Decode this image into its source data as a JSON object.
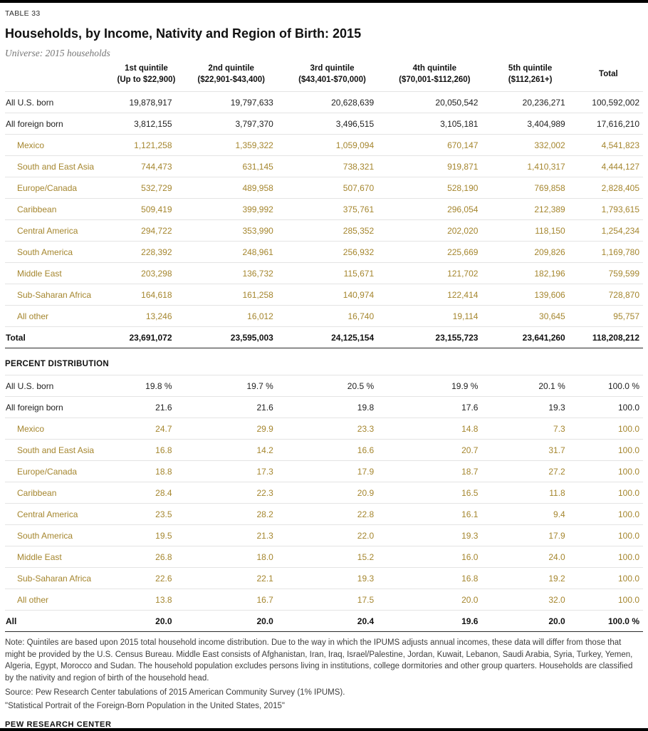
{
  "colors": {
    "accent-gold": "#a5862e",
    "text-dark": "#1a1a1a",
    "text-gray": "#757575",
    "line-light": "#e4e4e4",
    "line-dark": "#2b2b2b",
    "bar-black": "#000000"
  },
  "header": {
    "table_label": "TABLE 33",
    "title": "Households, by Income, Nativity and Region of Birth: 2015",
    "universe": "Universe: 2015 households"
  },
  "table": {
    "columns": [
      "",
      "1st quintile\n(Up to $22,900)",
      "2nd quintile\n($22,901-$43,400)",
      "3rd quintile\n($43,401-$70,000)",
      "4th quintile\n($70,001-$112,260)",
      "5th quintile\n($112,261+)",
      "Total"
    ],
    "count_rows": [
      {
        "label": "All U.S. born",
        "style": "plain",
        "values": [
          "19,878,917",
          "19,797,633",
          "20,628,639",
          "20,050,542",
          "20,236,271",
          "100,592,002"
        ]
      },
      {
        "label": "All foreign born",
        "style": "plain",
        "values": [
          "3,812,155",
          "3,797,370",
          "3,496,515",
          "3,105,181",
          "3,404,989",
          "17,616,210"
        ]
      },
      {
        "label": "Mexico",
        "style": "region",
        "values": [
          "1,121,258",
          "1,359,322",
          "1,059,094",
          "670,147",
          "332,002",
          "4,541,823"
        ]
      },
      {
        "label": "South and East Asia",
        "style": "region",
        "values": [
          "744,473",
          "631,145",
          "738,321",
          "919,871",
          "1,410,317",
          "4,444,127"
        ]
      },
      {
        "label": "Europe/Canada",
        "style": "region",
        "values": [
          "532,729",
          "489,958",
          "507,670",
          "528,190",
          "769,858",
          "2,828,405"
        ]
      },
      {
        "label": "Caribbean",
        "style": "region",
        "values": [
          "509,419",
          "399,992",
          "375,761",
          "296,054",
          "212,389",
          "1,793,615"
        ]
      },
      {
        "label": "Central America",
        "style": "region",
        "values": [
          "294,722",
          "353,990",
          "285,352",
          "202,020",
          "118,150",
          "1,254,234"
        ]
      },
      {
        "label": "South America",
        "style": "region",
        "values": [
          "228,392",
          "248,961",
          "256,932",
          "225,669",
          "209,826",
          "1,169,780"
        ]
      },
      {
        "label": "Middle East",
        "style": "region",
        "values": [
          "203,298",
          "136,732",
          "115,671",
          "121,702",
          "182,196",
          "759,599"
        ]
      },
      {
        "label": "Sub-Saharan Africa",
        "style": "region",
        "values": [
          "164,618",
          "161,258",
          "140,974",
          "122,414",
          "139,606",
          "728,870"
        ]
      },
      {
        "label": "All other",
        "style": "region",
        "values": [
          "13,246",
          "16,012",
          "16,740",
          "19,114",
          "30,645",
          "95,757"
        ]
      },
      {
        "label": "Total",
        "style": "total",
        "values": [
          "23,691,072",
          "23,595,003",
          "24,125,154",
          "23,155,723",
          "23,641,260",
          "118,208,212"
        ]
      }
    ],
    "percent_heading": "PERCENT DISTRIBUTION",
    "percent_rows": [
      {
        "label": "All U.S. born",
        "style": "plain",
        "values": [
          "19.8 %",
          "19.7 %",
          "20.5 %",
          "19.9 %",
          "20.1 %",
          "100.0 %"
        ]
      },
      {
        "label": "All foreign born",
        "style": "plain",
        "values": [
          "21.6",
          "21.6",
          "19.8",
          "17.6",
          "19.3",
          "100.0"
        ]
      },
      {
        "label": "Mexico",
        "style": "region",
        "values": [
          "24.7",
          "29.9",
          "23.3",
          "14.8",
          "7.3",
          "100.0"
        ]
      },
      {
        "label": "South and East Asia",
        "style": "region",
        "values": [
          "16.8",
          "14.2",
          "16.6",
          "20.7",
          "31.7",
          "100.0"
        ]
      },
      {
        "label": "Europe/Canada",
        "style": "region",
        "values": [
          "18.8",
          "17.3",
          "17.9",
          "18.7",
          "27.2",
          "100.0"
        ]
      },
      {
        "label": "Caribbean",
        "style": "region",
        "values": [
          "28.4",
          "22.3",
          "20.9",
          "16.5",
          "11.8",
          "100.0"
        ]
      },
      {
        "label": "Central America",
        "style": "region",
        "values": [
          "23.5",
          "28.2",
          "22.8",
          "16.1",
          "9.4",
          "100.0"
        ]
      },
      {
        "label": "South America",
        "style": "region",
        "values": [
          "19.5",
          "21.3",
          "22.0",
          "19.3",
          "17.9",
          "100.0"
        ]
      },
      {
        "label": "Middle East",
        "style": "region",
        "values": [
          "26.8",
          "18.0",
          "15.2",
          "16.0",
          "24.0",
          "100.0"
        ]
      },
      {
        "label": "Sub-Saharan Africa",
        "style": "region",
        "values": [
          "22.6",
          "22.1",
          "19.3",
          "16.8",
          "19.2",
          "100.0"
        ]
      },
      {
        "label": "All other",
        "style": "region",
        "values": [
          "13.8",
          "16.7",
          "17.5",
          "20.0",
          "32.0",
          "100.0"
        ]
      },
      {
        "label": "All",
        "style": "total",
        "values": [
          "20.0",
          "20.0",
          "20.4",
          "19.6",
          "20.0",
          "100.0 %"
        ]
      }
    ]
  },
  "footer": {
    "note": "Note: Quintiles are based upon 2015 total household income distribution. Due to the way in which the IPUMS adjusts annual incomes, these data will differ from those that might be provided by the U.S. Census Bureau. Middle East consists of Afghanistan, Iran, Iraq, Israel/Palestine, Jordan, Kuwait, Lebanon, Saudi Arabia, Syria, Turkey, Yemen, Algeria, Egypt, Morocco and Sudan. The household population excludes persons living in institutions, college dormitories and other group quarters. Households are classified by the nativity and region of birth of the household head.",
    "source": "Source: Pew Research Center tabulations of 2015 American Community Survey (1% IPUMS).",
    "citation": "\"Statistical Portrait of the Foreign-Born Population in the United States, 2015\"",
    "brand": "PEW RESEARCH CENTER"
  }
}
